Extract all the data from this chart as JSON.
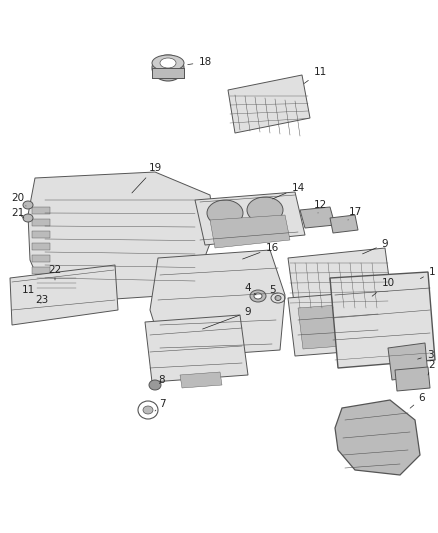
{
  "bg": "#ffffff",
  "fw": 4.38,
  "fh": 5.33,
  "dpi": 100,
  "ec": "#555555",
  "lc": "#888888",
  "fc_light": "#e0e0e0",
  "fc_med": "#bbbbbb",
  "fc_dark": "#999999",
  "lw": 0.7,
  "fs": 7.5,
  "tc": "#222222"
}
